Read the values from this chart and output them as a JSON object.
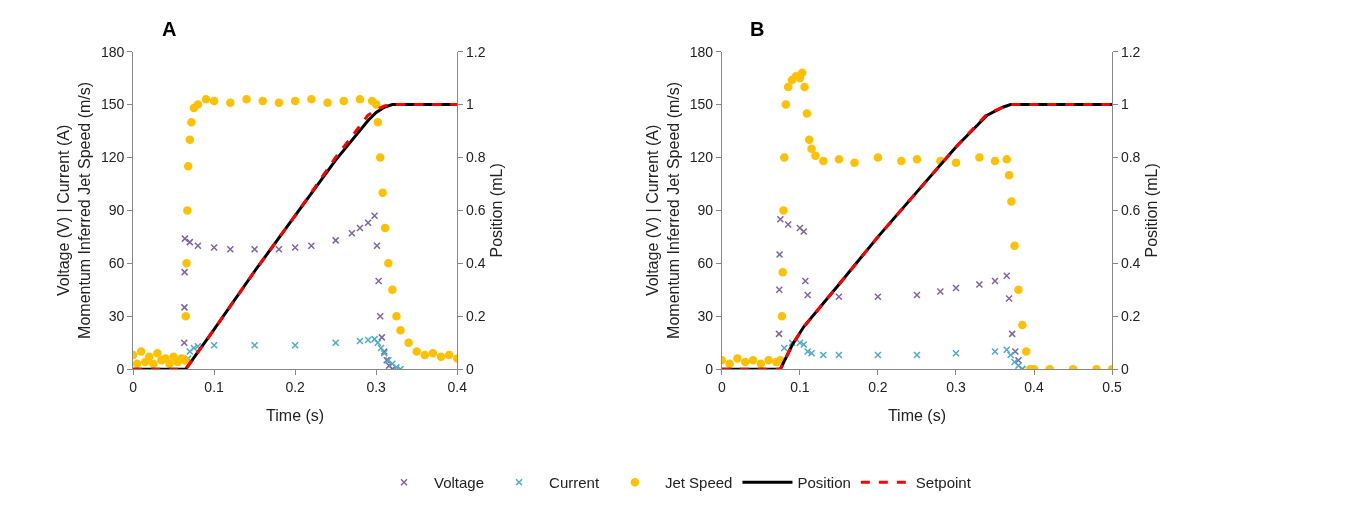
{
  "chart_data": [
    {
      "type": "scatter",
      "title": "A",
      "xlabel": "Time (s)",
      "ylabel": "Voltage (V) | Current (A)\nMomentum Inferred Jet Speed (m/s)",
      "y2label": "Position (mL)",
      "xlim": [
        0,
        0.4
      ],
      "xticks": [
        0,
        0.1,
        0.2,
        0.3,
        0.4
      ],
      "ylim": [
        0,
        180
      ],
      "yticks": [
        0,
        30,
        60,
        90,
        120,
        150,
        180
      ],
      "y2lim": [
        0,
        1.2
      ],
      "y2ticks": [
        0,
        0.2,
        0.4,
        0.6,
        0.8,
        1,
        1.2
      ],
      "legend": "bottom",
      "series": [
        {
          "name": "Voltage",
          "marker": "cross",
          "color": "#8064a2",
          "x": [
            0.0632,
            0.0634,
            0.0636,
            0.064,
            0.07,
            0.08,
            0.1,
            0.12,
            0.15,
            0.18,
            0.2,
            0.22,
            0.25,
            0.27,
            0.28,
            0.29,
            0.298,
            0.301,
            0.303,
            0.305,
            0.307,
            0.31,
            0.313,
            0.316,
            0.32
          ],
          "values": [
            15,
            35,
            55,
            74,
            72,
            70,
            69,
            68,
            68,
            68,
            69,
            70,
            73,
            77,
            80,
            83,
            87,
            70,
            50,
            30,
            18,
            10,
            5,
            2,
            0
          ]
        },
        {
          "name": "Current",
          "marker": "cross",
          "color": "#4bacc6",
          "x": [
            0.068,
            0.07,
            0.075,
            0.08,
            0.1,
            0.15,
            0.2,
            0.25,
            0.28,
            0.29,
            0.298,
            0.302,
            0.306,
            0.31,
            0.315,
            0.32,
            0.325,
            0.33
          ],
          "values": [
            6,
            10,
            12,
            13,
            13.5,
            13.5,
            13.5,
            15,
            16,
            16.5,
            17,
            15,
            12,
            9,
            5,
            3,
            1,
            0
          ]
        },
        {
          "name": "Jet Speed",
          "marker": "circle",
          "color": "#ffc000",
          "x": [
            0,
            0.005,
            0.01,
            0.015,
            0.02,
            0.025,
            0.03,
            0.035,
            0.04,
            0.045,
            0.05,
            0.055,
            0.06,
            0.064,
            0.065,
            0.066,
            0.067,
            0.068,
            0.07,
            0.072,
            0.075,
            0.08,
            0.09,
            0.1,
            0.12,
            0.14,
            0.16,
            0.18,
            0.2,
            0.22,
            0.24,
            0.26,
            0.28,
            0.295,
            0.3,
            0.302,
            0.305,
            0.308,
            0.311,
            0.315,
            0.32,
            0.325,
            0.33,
            0.34,
            0.35,
            0.36,
            0.37,
            0.38,
            0.39,
            0.4
          ],
          "values": [
            8,
            3,
            10,
            4,
            7,
            3,
            9,
            5,
            6,
            3,
            7,
            4,
            6,
            5,
            30,
            60,
            90,
            115,
            130,
            140,
            148,
            150,
            153,
            152,
            151,
            153,
            152,
            151,
            152,
            153,
            151,
            152,
            153,
            152,
            150,
            140,
            120,
            100,
            80,
            60,
            45,
            30,
            22,
            15,
            10,
            8,
            9,
            7,
            8,
            6
          ]
        },
        {
          "name": "Position",
          "type": "line",
          "color": "#000000",
          "axis": "y2",
          "line_style": "solid",
          "x": [
            0,
            0.065,
            0.1,
            0.15,
            0.2,
            0.25,
            0.29,
            0.3,
            0.31,
            0.32,
            0.33,
            0.35,
            0.4
          ],
          "values": [
            0,
            0,
            0.15,
            0.37,
            0.58,
            0.79,
            0.94,
            0.97,
            0.99,
            1,
            1,
            1,
            1
          ]
        },
        {
          "name": "Setpoint",
          "type": "line",
          "color": "#ff0000",
          "axis": "y2",
          "line_style": "dashed",
          "x": [
            0,
            0.065,
            0.1,
            0.15,
            0.2,
            0.25,
            0.29,
            0.3,
            0.31,
            0.32,
            0.33,
            0.35,
            0.4
          ],
          "values": [
            0,
            0,
            0.15,
            0.37,
            0.58,
            0.8,
            0.96,
            0.98,
            0.995,
            1,
            1,
            1,
            1
          ]
        }
      ]
    },
    {
      "type": "scatter",
      "title": "B",
      "xlabel": "Time (s)",
      "ylabel": "Voltage (V) | Current (A)\nMomentum Inferred Jet Speed (m/s)",
      "y2label": "Position (mL)",
      "xlim": [
        0,
        0.5
      ],
      "xticks": [
        0,
        0.1,
        0.2,
        0.3,
        0.4,
        0.5
      ],
      "ylim": [
        0,
        180
      ],
      "yticks": [
        0,
        30,
        60,
        90,
        120,
        150,
        180
      ],
      "y2lim": [
        0,
        1.2
      ],
      "y2ticks": [
        0,
        0.2,
        0.4,
        0.6,
        0.8,
        1,
        1.2
      ],
      "legend": "bottom",
      "series": [
        {
          "name": "Voltage",
          "marker": "cross",
          "color": "#8064a2",
          "x": [
            0.0733,
            0.0736,
            0.074,
            0.075,
            0.085,
            0.1,
            0.105,
            0.107,
            0.11,
            0.15,
            0.2,
            0.25,
            0.28,
            0.3,
            0.33,
            0.35,
            0.365,
            0.368,
            0.372,
            0.376,
            0.38,
            0.385
          ],
          "values": [
            20,
            45,
            65,
            85,
            82,
            80,
            78,
            50,
            42,
            41,
            41,
            42,
            44,
            46,
            48,
            50,
            53,
            40,
            20,
            10,
            5,
            0
          ]
        },
        {
          "name": "Current",
          "marker": "cross",
          "color": "#4bacc6",
          "x": [
            0.08,
            0.09,
            0.1,
            0.105,
            0.11,
            0.115,
            0.13,
            0.15,
            0.2,
            0.25,
            0.3,
            0.35,
            0.365,
            0.37,
            0.375,
            0.38,
            0.385
          ],
          "values": [
            12,
            15,
            15,
            14,
            10,
            9,
            8,
            8,
            8,
            8,
            9,
            10,
            11,
            8,
            4,
            2,
            0
          ]
        },
        {
          "name": "Jet Speed",
          "marker": "circle",
          "color": "#ffc000",
          "x": [
            0,
            0.01,
            0.02,
            0.03,
            0.04,
            0.05,
            0.06,
            0.07,
            0.075,
            0.077,
            0.078,
            0.079,
            0.08,
            0.082,
            0.085,
            0.09,
            0.095,
            0.1,
            0.103,
            0.106,
            0.109,
            0.112,
            0.115,
            0.12,
            0.13,
            0.15,
            0.17,
            0.2,
            0.23,
            0.25,
            0.28,
            0.3,
            0.33,
            0.35,
            0.365,
            0.368,
            0.371,
            0.375,
            0.38,
            0.385,
            0.39,
            0.395,
            0.4,
            0.42,
            0.45,
            0.48,
            0.5
          ],
          "values": [
            5,
            3,
            6,
            4,
            5,
            3,
            5,
            4,
            5,
            30,
            55,
            90,
            120,
            150,
            160,
            164,
            166,
            165,
            168,
            160,
            145,
            130,
            125,
            121,
            118,
            119,
            117,
            120,
            118,
            119,
            118,
            117,
            120,
            118,
            119,
            110,
            95,
            70,
            45,
            25,
            10,
            0,
            0,
            0,
            0,
            0,
            0
          ]
        },
        {
          "name": "Position",
          "type": "line",
          "color": "#000000",
          "axis": "y2",
          "line_style": "solid",
          "x": [
            0,
            0.075,
            0.09,
            0.105,
            0.15,
            0.2,
            0.25,
            0.3,
            0.34,
            0.36,
            0.37,
            0.38,
            0.4,
            0.5
          ],
          "values": [
            0,
            0,
            0.09,
            0.16,
            0.32,
            0.5,
            0.67,
            0.84,
            0.96,
            0.99,
            1,
            1,
            1,
            1
          ]
        },
        {
          "name": "Setpoint",
          "type": "line",
          "color": "#ff0000",
          "axis": "y2",
          "line_style": "dashed",
          "x": [
            0,
            0.075,
            0.09,
            0.105,
            0.15,
            0.2,
            0.25,
            0.3,
            0.34,
            0.36,
            0.37,
            0.38,
            0.4,
            0.5
          ],
          "values": [
            0,
            0,
            0.09,
            0.16,
            0.32,
            0.5,
            0.67,
            0.84,
            0.965,
            0.99,
            1,
            1,
            1,
            1
          ]
        }
      ]
    }
  ]
}
